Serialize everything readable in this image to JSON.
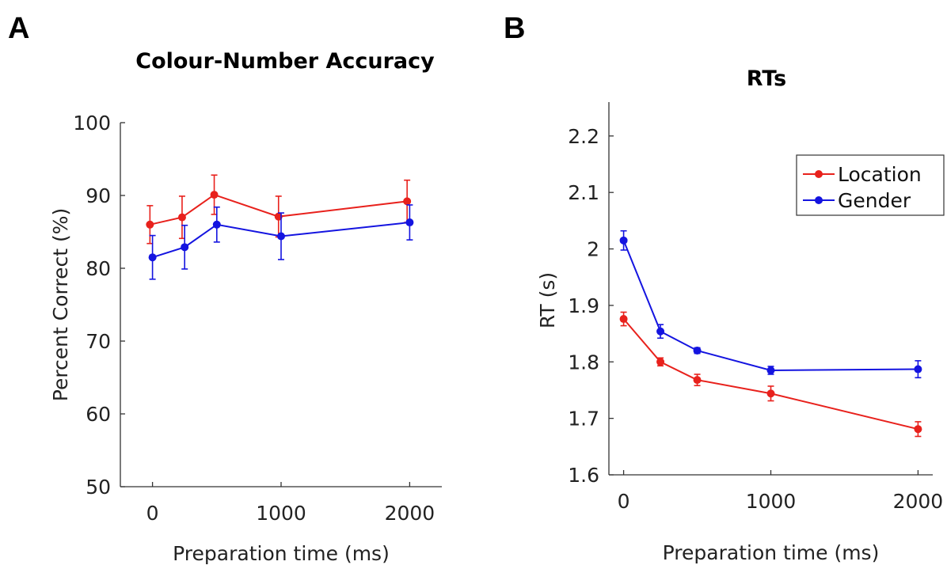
{
  "panels": [
    {
      "letter": "A"
    },
    {
      "letter": "B"
    }
  ],
  "chart_data": [
    {
      "type": "line",
      "title": "Colour-Number Accuracy",
      "xlabel": "Preparation time (ms)",
      "ylabel": "Percent Correct (%)",
      "xlim": [
        -250,
        2250
      ],
      "ylim": [
        50,
        100
      ],
      "xticks": [
        0,
        1000,
        2000
      ],
      "xtick_labels": [
        "0",
        "1000",
        "2000"
      ],
      "yticks": [
        50,
        60,
        70,
        80,
        90,
        100
      ],
      "ytick_labels": [
        "50",
        "60",
        "70",
        "80",
        "90",
        "100"
      ],
      "grid": false,
      "series": [
        {
          "color": "#e8211c",
          "x": [
            -20,
            230,
            480,
            980,
            1980
          ],
          "y": [
            86.0,
            87.0,
            90.1,
            87.1,
            89.2
          ],
          "err": [
            2.6,
            2.9,
            2.7,
            2.8,
            2.9
          ]
        },
        {
          "color": "#1414e0",
          "x": [
            0,
            250,
            500,
            1000,
            2000
          ],
          "y": [
            81.5,
            82.9,
            86.0,
            84.4,
            86.3
          ],
          "err": [
            3.0,
            3.0,
            2.4,
            3.2,
            2.4
          ]
        }
      ]
    },
    {
      "type": "line",
      "title": "RTs",
      "xlabel": "Preparation time (ms)",
      "ylabel": "RT (s)",
      "xlim": [
        -100,
        2100
      ],
      "ylim": [
        1.6,
        2.26
      ],
      "xticks": [
        0,
        1000,
        2000
      ],
      "xtick_labels": [
        "0",
        "1000",
        "2000"
      ],
      "yticks": [
        1.6,
        1.7,
        1.8,
        1.9,
        2.0,
        2.1,
        2.2
      ],
      "ytick_labels": [
        "1.6",
        "1.7",
        "1.8",
        "1.9",
        "2",
        "2.1",
        "2.2"
      ],
      "grid": false,
      "legend": "top-right",
      "series": [
        {
          "name": "Location",
          "color": "#e8211c",
          "x": [
            0,
            250,
            500,
            1000,
            2000
          ],
          "y": [
            1.876,
            1.8,
            1.768,
            1.744,
            1.681
          ],
          "err": [
            0.012,
            0.007,
            0.01,
            0.013,
            0.013
          ]
        },
        {
          "name": "Gender",
          "color": "#1414e0",
          "x": [
            0,
            250,
            500,
            1000,
            2000
          ],
          "y": [
            2.015,
            1.854,
            1.82,
            1.785,
            1.787
          ],
          "err": [
            0.017,
            0.012,
            0.005,
            0.007,
            0.015
          ]
        }
      ]
    }
  ]
}
